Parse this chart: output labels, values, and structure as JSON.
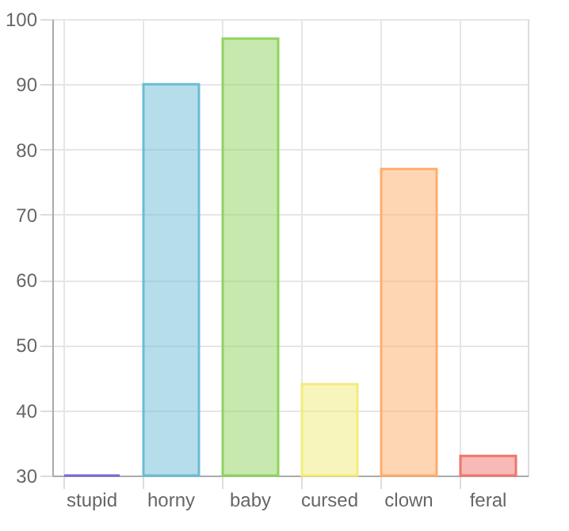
{
  "chart_data": {
    "type": "bar",
    "categories": [
      "stupid",
      "horny",
      "baby",
      "cursed",
      "clown",
      "feral"
    ],
    "values": [
      30,
      90,
      97,
      44,
      77,
      33
    ],
    "colors": [
      "#7b68d8",
      "#6cbcd6",
      "#8fd35f",
      "#f2ec7a",
      "#ffad6a",
      "#f0756e"
    ],
    "ylim": [
      30,
      100
    ],
    "yticks": [
      30,
      40,
      50,
      60,
      70,
      80,
      90,
      100
    ],
    "grid": true,
    "legend": false
  }
}
